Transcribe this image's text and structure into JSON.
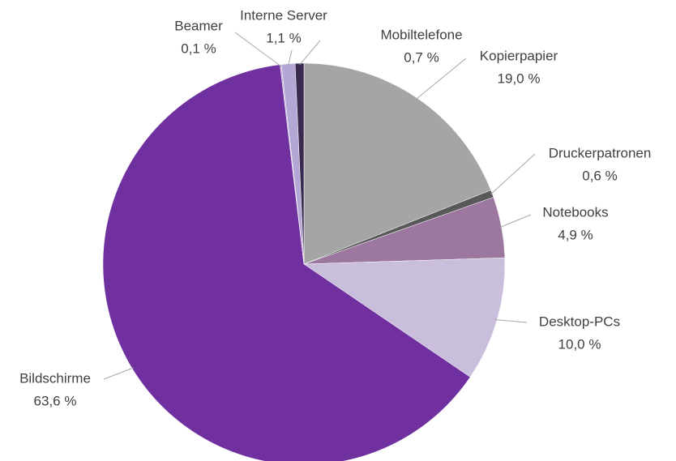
{
  "chart_data": {
    "type": "pie",
    "categories": [
      "Kopierpapier",
      "Druckerpatronen",
      "Notebooks",
      "Desktop-PCs",
      "Bildschirme",
      "Beamer",
      "Interne Server",
      "Mobiltelefone"
    ],
    "values": [
      19.0,
      0.6,
      4.9,
      10.0,
      63.6,
      0.1,
      1.1,
      0.7
    ],
    "value_labels": [
      "19,0 %",
      "0,6 %",
      "4,9 %",
      "10,0 %",
      "63,6 %",
      "0,1 %",
      "1,1 %",
      "0,7 %"
    ],
    "colors": [
      "#a5a5a5",
      "#595959",
      "#9c78a0",
      "#c9bfdc",
      "#7030a0",
      "#b4a7d6",
      "#b4a7d6",
      "#3b2a50"
    ]
  }
}
